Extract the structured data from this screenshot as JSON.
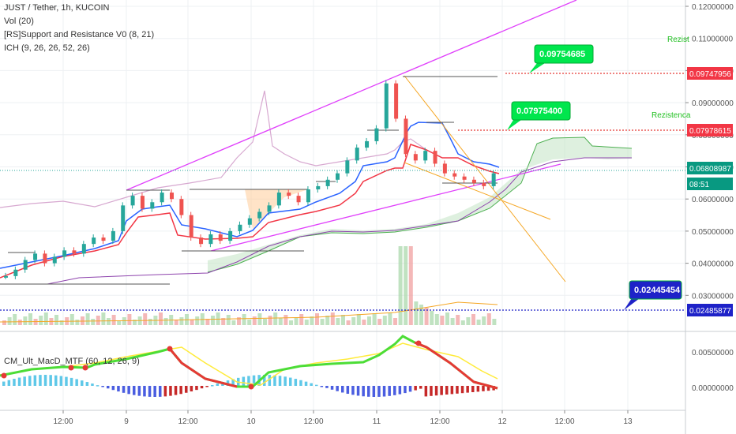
{
  "legend": {
    "symbol": "JUST / Tether, 1h, KUCOIN",
    "vol": "Vol (20)",
    "sr": "[RS]Support and Resistance V0 (8, 21)",
    "ich": "ICH (9, 26, 26, 52, 26)",
    "macd": "CM_Ult_MacD_MTF (60, 12, 26, 9)"
  },
  "price_axis_ticks": [
    "0.12000000",
    "0.11000000",
    "0.10000000",
    "0.09000000",
    "0.08000000",
    "0.07000000",
    "0.06000000",
    "0.05000000",
    "0.04000000",
    "0.03000000"
  ],
  "macd_axis_ticks": [
    "0.00500000",
    "0.00000000"
  ],
  "time_axis_ticks": [
    "12:00",
    "9",
    "12:00",
    "10",
    "12:00",
    "11",
    "12:00",
    "12",
    "12:00",
    "13"
  ],
  "price_tags": [
    {
      "text": "0.09747956",
      "color": "#f23645"
    },
    {
      "text": "0.07978615",
      "color": "#f23645"
    },
    {
      "text": "0.06808987",
      "color": "#089981"
    },
    {
      "text": "08:51",
      "color": "#089981"
    },
    {
      "text": "0.02485877",
      "color": "#1e22c8"
    }
  ],
  "callouts": [
    {
      "text": "0.09754685",
      "value": 0.09754685
    },
    {
      "text": "0.07975400",
      "value": 0.079754
    },
    {
      "text": "0.02445454",
      "value": 0.02445454
    }
  ],
  "rezist_labels": [
    "Rezist",
    "Rezistenca"
  ],
  "colors": {
    "up": "#26a69a",
    "down": "#ef5350",
    "tenkan": "#2962ff",
    "kijun": "#f23645",
    "chikou": "#d7a8d0",
    "cloud": "#c8e6c9",
    "span": "#4caf50",
    "trend": "#e040fb",
    "fan": "#f5a623",
    "resistance": "#e53935",
    "support": "#1e22c8",
    "macd_up": "#4cdd36",
    "macd_down": "#e53935",
    "signal": "#ffeb3b"
  },
  "chart_data": {
    "type": "candlestick",
    "symbol": "JUST / Tether",
    "interval": "1h",
    "exchange": "KUCOIN",
    "ylim": [
      0.025,
      0.12
    ],
    "series": [
      {
        "name": "price",
        "values": [
          0.036,
          0.038,
          0.041,
          0.043,
          0.04,
          0.042,
          0.044,
          0.043,
          0.046,
          0.048,
          0.047,
          0.05,
          0.058,
          0.061,
          0.057,
          0.059,
          0.062,
          0.06,
          0.055,
          0.048,
          0.046,
          0.049,
          0.047,
          0.05,
          0.052,
          0.054,
          0.056,
          0.058,
          0.062,
          0.061,
          0.059,
          0.063,
          0.064,
          0.066,
          0.068,
          0.072,
          0.076,
          0.078,
          0.082,
          0.096,
          0.085,
          0.074,
          0.072,
          0.075,
          0.071,
          0.068,
          0.067,
          0.066,
          0.065,
          0.064,
          0.068
        ]
      }
    ],
    "levels": [
      {
        "label": "0.09747956",
        "value": 0.09747956
      },
      {
        "label": "0.07978615",
        "value": 0.07978615
      },
      {
        "label": "0.06808987",
        "value": 0.06808987
      },
      {
        "label": "0.02485877",
        "value": 0.02485877
      }
    ]
  }
}
